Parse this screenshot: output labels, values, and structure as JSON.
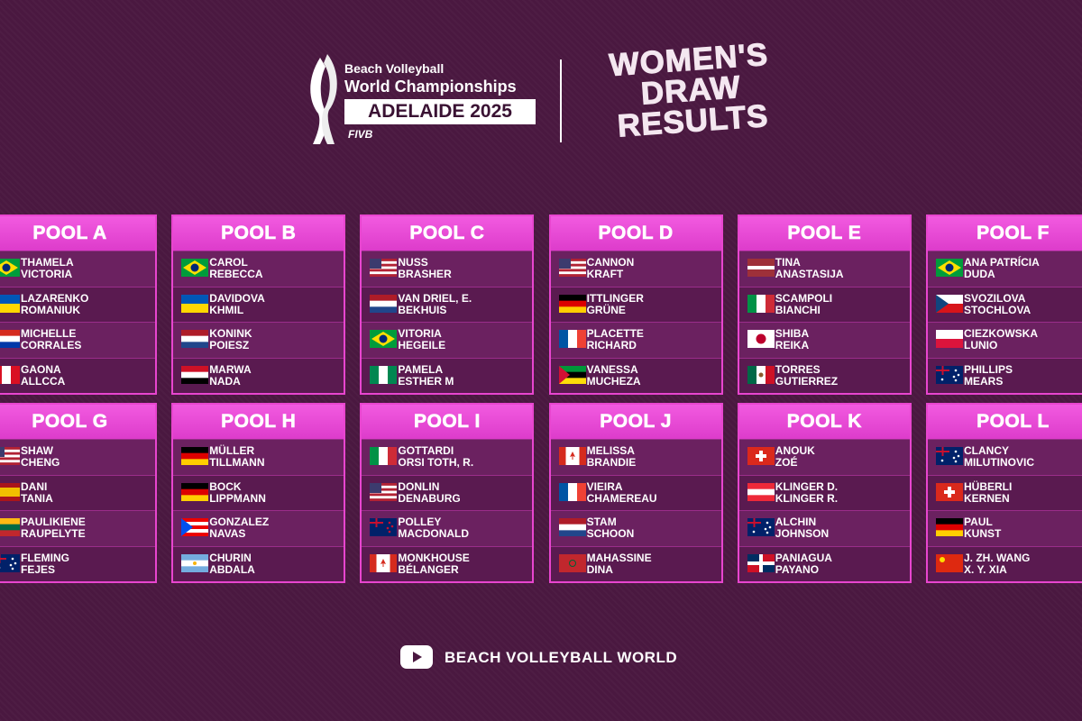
{
  "header": {
    "event_line1": "Beach Volleyball",
    "event_line2": "World Championships",
    "location": "ADELAIDE 2025",
    "federation": "FIVB",
    "title": [
      "WOMEN'S",
      "DRAW",
      "RESULTS"
    ]
  },
  "pools": [
    {
      "name": "POOL A",
      "teams": [
        [
          "THAMELA",
          "VICTORIA"
        ],
        [
          "LAZARENKO",
          "ROMANIUK"
        ],
        [
          "MICHELLE",
          "CORRALES"
        ],
        [
          "GAONA",
          "ALLCCA"
        ]
      ]
    },
    {
      "name": "POOL B",
      "teams": [
        [
          "CAROL",
          "REBECCA"
        ],
        [
          "DAVIDOVA",
          "KHMIL"
        ],
        [
          "KONINK",
          "POIESZ"
        ],
        [
          "MARWA",
          "NADA"
        ]
      ]
    },
    {
      "name": "POOL C",
      "teams": [
        [
          "NUSS",
          "BRASHER"
        ],
        [
          "VAN DRIEL, E.",
          "BEKHUIS"
        ],
        [
          "VITORIA",
          "HEGEILE"
        ],
        [
          "PAMELA",
          "ESTHER M"
        ]
      ]
    },
    {
      "name": "POOL D",
      "teams": [
        [
          "CANNON",
          "KRAFT"
        ],
        [
          "ITTLINGER",
          "GRÜNE"
        ],
        [
          "PLACETTE",
          "RICHARD"
        ],
        [
          "VANESSA",
          "MUCHEZA"
        ]
      ]
    },
    {
      "name": "POOL E",
      "teams": [
        [
          "TINA",
          "ANASTASIJA"
        ],
        [
          "SCAMPOLI",
          "BIANCHI"
        ],
        [
          "SHIBA",
          "REIKA"
        ],
        [
          "TORRES",
          "GUTIERREZ"
        ]
      ]
    },
    {
      "name": "POOL F",
      "teams": [
        [
          "ANA PATRÍCIA",
          "DUDA"
        ],
        [
          "SVOZILOVA",
          "STOCHLOVA"
        ],
        [
          "CIEZKOWSKA",
          "LUNIO"
        ],
        [
          "PHILLIPS",
          "MEARS"
        ]
      ]
    },
    {
      "name": "POOL G",
      "teams": [
        [
          "SHAW",
          "CHENG"
        ],
        [
          "DANI",
          "TANIA"
        ],
        [
          "PAULIKIENE",
          "RAUPELYTE"
        ],
        [
          "FLEMING",
          "FEJES"
        ]
      ]
    },
    {
      "name": "POOL H",
      "teams": [
        [
          "MÜLLER",
          "TILLMANN"
        ],
        [
          "BOCK",
          "LIPPMANN"
        ],
        [
          "GONZALEZ",
          "NAVAS"
        ],
        [
          "CHURIN",
          "ABDALA"
        ]
      ]
    },
    {
      "name": "POOL I",
      "teams": [
        [
          "GOTTARDI",
          "ORSI TOTH, R."
        ],
        [
          "DONLIN",
          "DENABURG"
        ],
        [
          "POLLEY",
          "MACDONALD"
        ],
        [
          "MONKHOUSE",
          "BÉLANGER"
        ]
      ]
    },
    {
      "name": "POOL J",
      "teams": [
        [
          "MELISSA",
          "BRANDIE"
        ],
        [
          "VIEIRA",
          "CHAMEREAU"
        ],
        [
          "STAM",
          "SCHOON"
        ],
        [
          "MAHASSINE",
          "DINA"
        ]
      ]
    },
    {
      "name": "POOL K",
      "teams": [
        [
          "ANOUK",
          "ZOÉ"
        ],
        [
          "KLINGER D.",
          "KLINGER R."
        ],
        [
          "ALCHIN",
          "JOHNSON"
        ],
        [
          "PANIAGUA",
          "PAYANO"
        ]
      ]
    },
    {
      "name": "POOL L",
      "teams": [
        [
          "CLANCY",
          "MILUTINOVIC"
        ],
        [
          "HÜBERLI",
          "KERNEN"
        ],
        [
          "PAUL",
          "KUNST"
        ],
        [
          "J. ZH. WANG",
          "X. Y. XIA"
        ]
      ]
    }
  ],
  "footer": {
    "brand": "BEACH VOLLEYBALL WORLD"
  }
}
